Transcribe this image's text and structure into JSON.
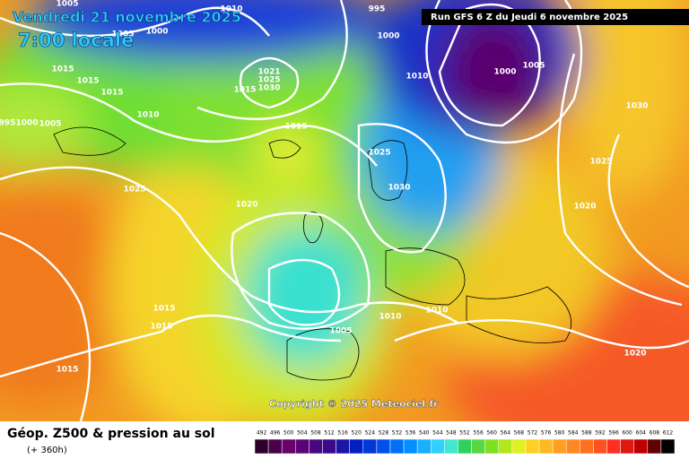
{
  "header": {
    "date": "Vendredi 21 novembre 2025",
    "time": "7:00 locale",
    "run": "Run GFS 6 Z du Jeudi 6 novembre 2025"
  },
  "isobar_labels": [
    "1005",
    "1010",
    "995",
    "1000",
    "1005",
    "1000",
    "1015",
    "1015",
    "1015",
    "1021",
    "1025",
    "1030",
    "1015",
    "1010",
    "995",
    "1000",
    "1005",
    "1000",
    "1005",
    "1010",
    "1030",
    "1015",
    "1025",
    "1025",
    "1025",
    "1030",
    "1020",
    "1020",
    "1015",
    "1015",
    "1010",
    "1010",
    "1005",
    "1015",
    "1020"
  ],
  "copyright": "Copyright © 2025 Meteociel.fr",
  "legend": {
    "title": "Géop. Z500 & pression au sol",
    "subtitle": "(+ 360h)",
    "scale": [
      "492",
      "496",
      "500",
      "504",
      "508",
      "512",
      "516",
      "520",
      "524",
      "528",
      "532",
      "536",
      "540",
      "544",
      "548",
      "552",
      "556",
      "560",
      "564",
      "568",
      "572",
      "576",
      "580",
      "584",
      "588",
      "592",
      "596",
      "600",
      "604",
      "608",
      "612"
    ]
  }
}
